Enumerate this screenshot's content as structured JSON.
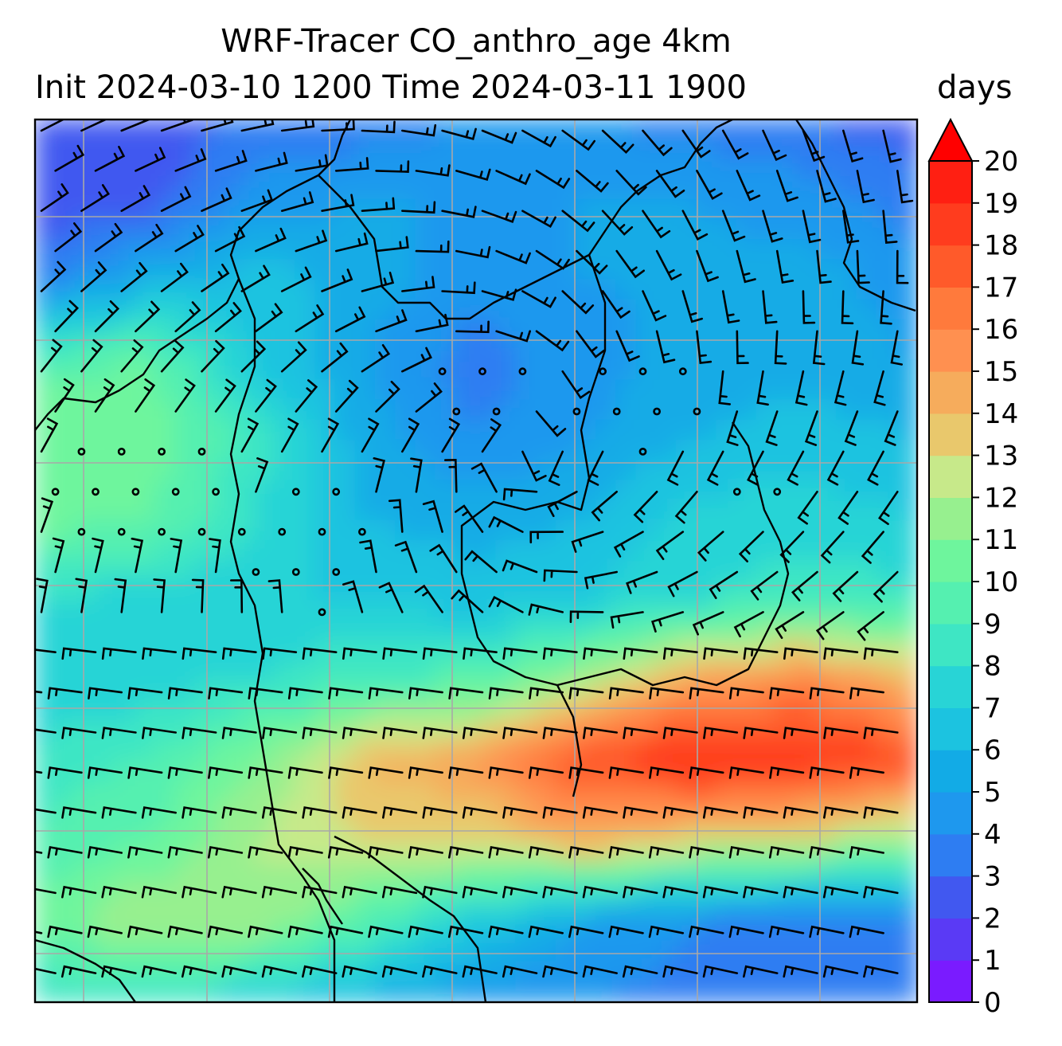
{
  "chart_data": {
    "type": "heatmap",
    "title": "WRF-Tracer CO_anthro_age 4km",
    "subtitle": "Init 2024-03-10 1200 Time 2024-03-11 1900",
    "colorbar": {
      "label": "days",
      "min": 0,
      "max": 20,
      "extend": "max",
      "ticks": [
        "0",
        "1",
        "2",
        "3",
        "4",
        "5",
        "6",
        "7",
        "8",
        "9",
        "10",
        "11",
        "12",
        "13",
        "14",
        "15",
        "16",
        "17",
        "18",
        "19",
        "20"
      ],
      "colors": [
        "#7a1bff",
        "#5a3af5",
        "#4158f0",
        "#2e7df2",
        "#1e98ee",
        "#12abe6",
        "#1cc3e0",
        "#28d4d6",
        "#3ee6c4",
        "#55f0b0",
        "#6ef59d",
        "#97f08f",
        "#c7e98a",
        "#e9c86c",
        "#f6ac5c",
        "#ff9050",
        "#ff7a3c",
        "#ff5a2a",
        "#ff3c1e",
        "#ff1f12"
      ]
    },
    "grid": true,
    "overlay": "wind barbs and calm-wind circles over coastline map",
    "age_field_days": [
      [
        2.0,
        2.2,
        3.2,
        3.5,
        4.0,
        4.2,
        3.5,
        3.0,
        2.5
      ],
      [
        2.2,
        2.5,
        4.5,
        5.0,
        5.0,
        5.0,
        5.0,
        4.5,
        3.5
      ],
      [
        3.5,
        5.5,
        6.5,
        5.5,
        4.5,
        5.0,
        5.2,
        5.5,
        4.5
      ],
      [
        9.5,
        10.0,
        7.0,
        5.0,
        3.5,
        4.5,
        5.5,
        5.5,
        5.0
      ],
      [
        11.0,
        11.0,
        8.5,
        5.5,
        4.0,
        5.0,
        6.0,
        6.5,
        6.0
      ],
      [
        10.5,
        10.0,
        8.0,
        6.0,
        5.5,
        6.0,
        7.5,
        7.5,
        7.0
      ],
      [
        8.0,
        7.5,
        7.0,
        7.0,
        6.5,
        7.0,
        8.0,
        8.5,
        8.5
      ],
      [
        7.0,
        7.5,
        8.0,
        9.0,
        9.5,
        12.0,
        15.0,
        16.0,
        14.0
      ],
      [
        8.5,
        9.0,
        11.0,
        14.0,
        15.0,
        18.0,
        19.5,
        19.0,
        18.0
      ],
      [
        9.0,
        10.0,
        12.0,
        13.0,
        13.0,
        14.5,
        13.0,
        12.5,
        11.0
      ],
      [
        10.5,
        12.0,
        12.0,
        9.5,
        7.0,
        5.0,
        4.0,
        3.5,
        3.5
      ],
      [
        8.0,
        8.0,
        7.0,
        5.5,
        4.5,
        4.0,
        3.5,
        3.0,
        3.0
      ]
    ]
  }
}
